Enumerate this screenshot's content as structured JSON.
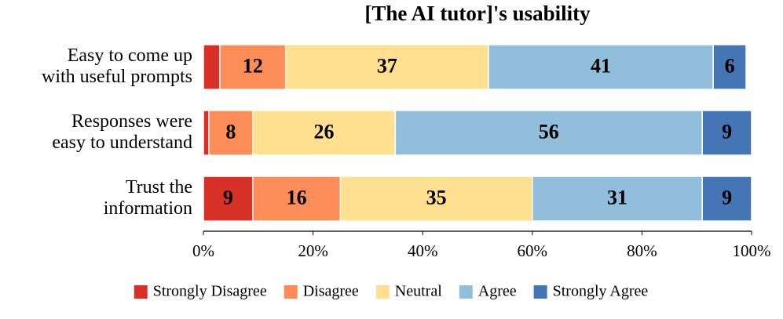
{
  "chart_data": {
    "type": "stacked-bar-horizontal",
    "title": "[The AI tutor]'s usability",
    "categories": [
      "Easy to come up\nwith useful prompts",
      "Responses were\neasy to understand",
      "Trust the\ninformation"
    ],
    "series": [
      {
        "name": "Strongly Disagree",
        "color": "#d73027",
        "values": [
          3,
          1,
          9
        ]
      },
      {
        "name": "Disagree",
        "color": "#fc8d59",
        "values": [
          12,
          8,
          16
        ]
      },
      {
        "name": "Neutral",
        "color": "#fee090",
        "values": [
          37,
          26,
          35
        ]
      },
      {
        "name": "Agree",
        "color": "#91bfdb",
        "values": [
          41,
          56,
          31
        ]
      },
      {
        "name": "Strongly Agree",
        "color": "#4575b4",
        "values": [
          6,
          9,
          9
        ]
      }
    ],
    "xlim": [
      0,
      100
    ],
    "xticks": [
      {
        "value": 0,
        "label": "0%"
      },
      {
        "value": 20,
        "label": "20%"
      },
      {
        "value": 40,
        "label": "40%"
      },
      {
        "value": 60,
        "label": "60%"
      },
      {
        "value": 80,
        "label": "80%"
      },
      {
        "value": 100,
        "label": "100%"
      }
    ],
    "legend": "bottom"
  }
}
